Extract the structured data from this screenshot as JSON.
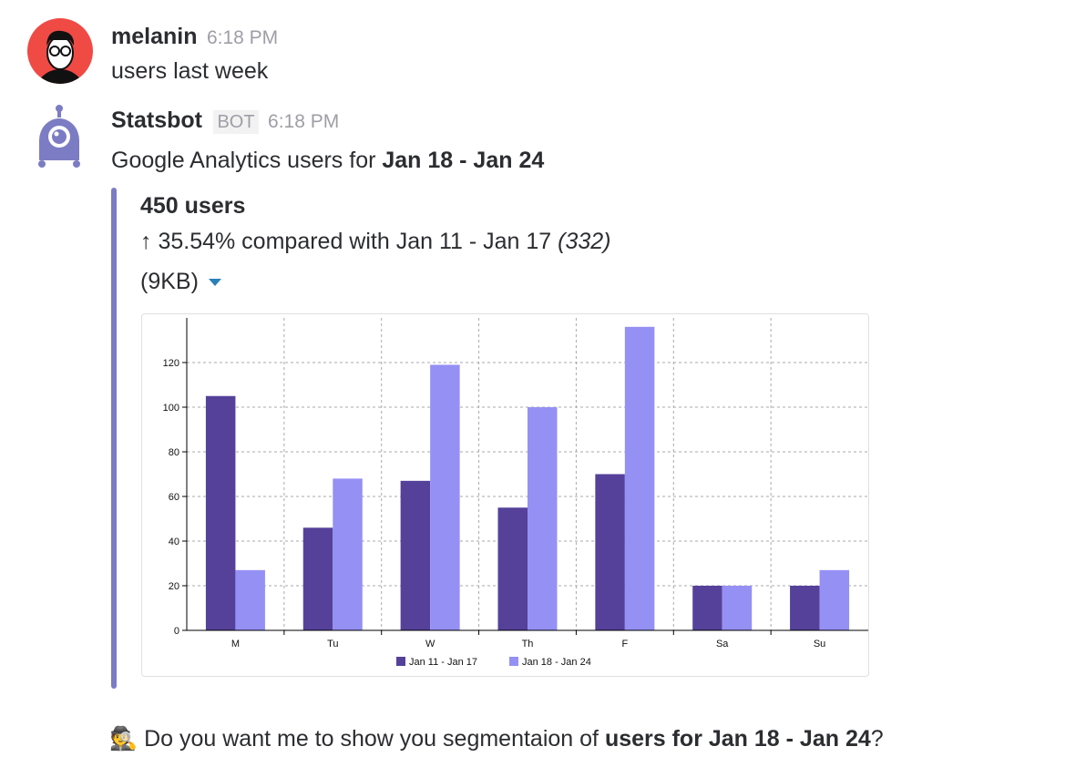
{
  "messages": [
    {
      "author": "melanin",
      "time": "6:18 PM",
      "text": "users last week"
    },
    {
      "author": "Statsbot",
      "badge": "BOT",
      "time": "6:18 PM",
      "text_prefix": "Google Analytics users for ",
      "text_bold": "Jan 18 - Jan 24"
    }
  ],
  "attachment": {
    "headline": "450 users",
    "compare_arrow": "↑",
    "compare_text": " 35.54% compared with Jan 11 - Jan 17 ",
    "compare_prev": "(332)",
    "size": "(9KB)"
  },
  "followup": {
    "emoji": "🕵️",
    "prefix": "Do you want me to show you segmentaion of ",
    "bold": "users for Jan 18 - Jan 24",
    "suffix": "?"
  },
  "colors": {
    "series1": "#55419a",
    "series2": "#9590f4",
    "accent": "#7c7cc4",
    "avatar_bg": "#f04a45"
  },
  "chart_data": {
    "type": "bar",
    "categories": [
      "M",
      "Tu",
      "W",
      "Th",
      "F",
      "Sa",
      "Su"
    ],
    "series": [
      {
        "name": "Jan 11 - Jan 17",
        "values": [
          105,
          46,
          67,
          55,
          70,
          20,
          20
        ]
      },
      {
        "name": "Jan 18 - Jan 24",
        "values": [
          27,
          68,
          119,
          100,
          136,
          20,
          27
        ]
      }
    ],
    "yticks": [
      0,
      20,
      40,
      60,
      80,
      100,
      120
    ],
    "ylim": [
      0,
      140
    ],
    "grid": true,
    "legend": "bottom"
  }
}
